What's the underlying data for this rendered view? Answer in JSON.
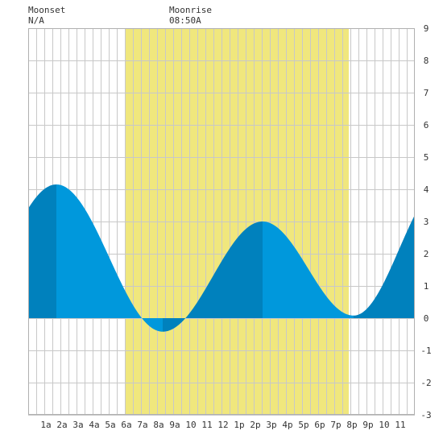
{
  "header": {
    "moonset_label": "Moonset",
    "moonset_time": "N/A",
    "moonrise_label": "Moonrise",
    "moonrise_time": "08:50A"
  },
  "chart_data": {
    "type": "area",
    "title": "",
    "xlabel": "",
    "ylabel": "",
    "x_unit": "hour of day",
    "xlim": [
      -0.1,
      23.9
    ],
    "ylim": [
      -3,
      9
    ],
    "x_tick_labels": [
      "1a",
      "2a",
      "3a",
      "4a",
      "5a",
      "6a",
      "7a",
      "8a",
      "9a",
      "10",
      "11",
      "12",
      "1p",
      "2p",
      "3p",
      "4p",
      "5p",
      "6p",
      "7p",
      "8p",
      "9p",
      "10",
      "11"
    ],
    "y_tick_labels": [
      "9",
      "8",
      "7",
      "6",
      "5",
      "4",
      "3",
      "2",
      "1",
      "0",
      "-1",
      "-2",
      "-3"
    ],
    "y_axis_side": "right",
    "grid": true,
    "daylight_band": {
      "start_hour": 5.9,
      "end_hour": 19.8,
      "color": "#f0e77d"
    },
    "extremes": [
      {
        "hour": 1.65,
        "height": 4.15
      },
      {
        "hour": 8.25,
        "height": -0.42
      },
      {
        "hour": 14.45,
        "height": 3.0
      },
      {
        "hour": 20.1,
        "height": 0.08
      }
    ],
    "start_height": 3.5,
    "end_height": 2.65,
    "colors": {
      "tide_fill": "#0098dc",
      "tide_dark": "#0081bd",
      "grid": "#c8c8c8",
      "background": "#ffffff"
    }
  }
}
